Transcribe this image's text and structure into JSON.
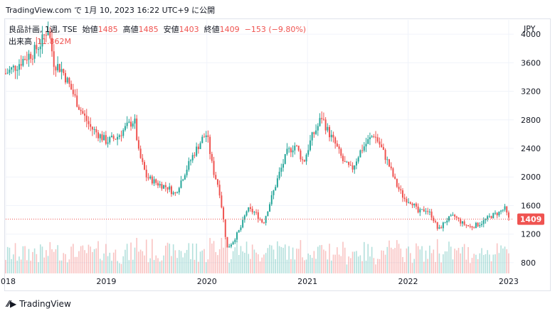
{
  "header": {
    "source_line": "TradingView.com で 1月 10, 2023 16:22 UTC+9 に公開"
  },
  "legend": {
    "symbol": "良品計画, 1週, TSE",
    "open_label": "始値",
    "open_value": "1485",
    "high_label": "高値",
    "high_value": "1485",
    "low_label": "安値",
    "low_value": "1403",
    "close_label": "終値",
    "close_value": "1409",
    "change": "−153 (−9.80%)",
    "volume_label": "出来高",
    "volume_value": "11.862M"
  },
  "axis": {
    "unit": "JPY"
  },
  "last_price_badge": "1409",
  "footer": {
    "brand": "TradingView"
  },
  "colors": {
    "up": "#26a69a",
    "down": "#ef5350",
    "grid": "#f0f3fa",
    "text": "#131722"
  },
  "chart_data": {
    "type": "candlestick",
    "y_ticks": [
      800,
      1200,
      1600,
      2000,
      2400,
      2800,
      3200,
      3600,
      4000
    ],
    "x_ticks": [
      "2018",
      "2019",
      "2020",
      "2021",
      "2022",
      "2023"
    ],
    "ylim": [
      650,
      4200
    ],
    "x_range": [
      2018.0,
      2023.05
    ],
    "last_price": 1409,
    "price_path": [
      [
        2018.0,
        3450
      ],
      [
        2018.1,
        3550
      ],
      [
        2018.2,
        3680
      ],
      [
        2018.28,
        3750
      ],
      [
        2018.36,
        3900
      ],
      [
        2018.42,
        4100
      ],
      [
        2018.48,
        3600
      ],
      [
        2018.56,
        3500
      ],
      [
        2018.66,
        3200
      ],
      [
        2018.74,
        2950
      ],
      [
        2018.84,
        2700
      ],
      [
        2018.92,
        2600
      ],
      [
        2019.0,
        2500
      ],
      [
        2019.1,
        2550
      ],
      [
        2019.2,
        2700
      ],
      [
        2019.28,
        2800
      ],
      [
        2019.32,
        2350
      ],
      [
        2019.4,
        2000
      ],
      [
        2019.52,
        1900
      ],
      [
        2019.62,
        1850
      ],
      [
        2019.68,
        1750
      ],
      [
        2019.76,
        2000
      ],
      [
        2019.86,
        2300
      ],
      [
        2019.96,
        2550
      ],
      [
        2020.0,
        2600
      ],
      [
        2020.06,
        2100
      ],
      [
        2020.12,
        1850
      ],
      [
        2020.16,
        1450
      ],
      [
        2020.2,
        1000
      ],
      [
        2020.26,
        1100
      ],
      [
        2020.34,
        1300
      ],
      [
        2020.4,
        1550
      ],
      [
        2020.48,
        1500
      ],
      [
        2020.56,
        1350
      ],
      [
        2020.64,
        1700
      ],
      [
        2020.72,
        2050
      ],
      [
        2020.8,
        2350
      ],
      [
        2020.88,
        2450
      ],
      [
        2020.96,
        2200
      ],
      [
        2021.04,
        2550
      ],
      [
        2021.1,
        2700
      ],
      [
        2021.14,
        2850
      ],
      [
        2021.2,
        2650
      ],
      [
        2021.28,
        2450
      ],
      [
        2021.36,
        2200
      ],
      [
        2021.44,
        2100
      ],
      [
        2021.52,
        2350
      ],
      [
        2021.6,
        2500
      ],
      [
        2021.66,
        2600
      ],
      [
        2021.72,
        2450
      ],
      [
        2021.8,
        2200
      ],
      [
        2021.88,
        1900
      ],
      [
        2021.96,
        1700
      ],
      [
        2022.04,
        1650
      ],
      [
        2022.1,
        1500
      ],
      [
        2022.18,
        1550
      ],
      [
        2022.24,
        1450
      ],
      [
        2022.3,
        1250
      ],
      [
        2022.38,
        1400
      ],
      [
        2022.46,
        1450
      ],
      [
        2022.54,
        1350
      ],
      [
        2022.62,
        1300
      ],
      [
        2022.72,
        1350
      ],
      [
        2022.82,
        1450
      ],
      [
        2022.9,
        1500
      ],
      [
        2022.96,
        1560
      ],
      [
        2023.0,
        1409
      ]
    ]
  }
}
